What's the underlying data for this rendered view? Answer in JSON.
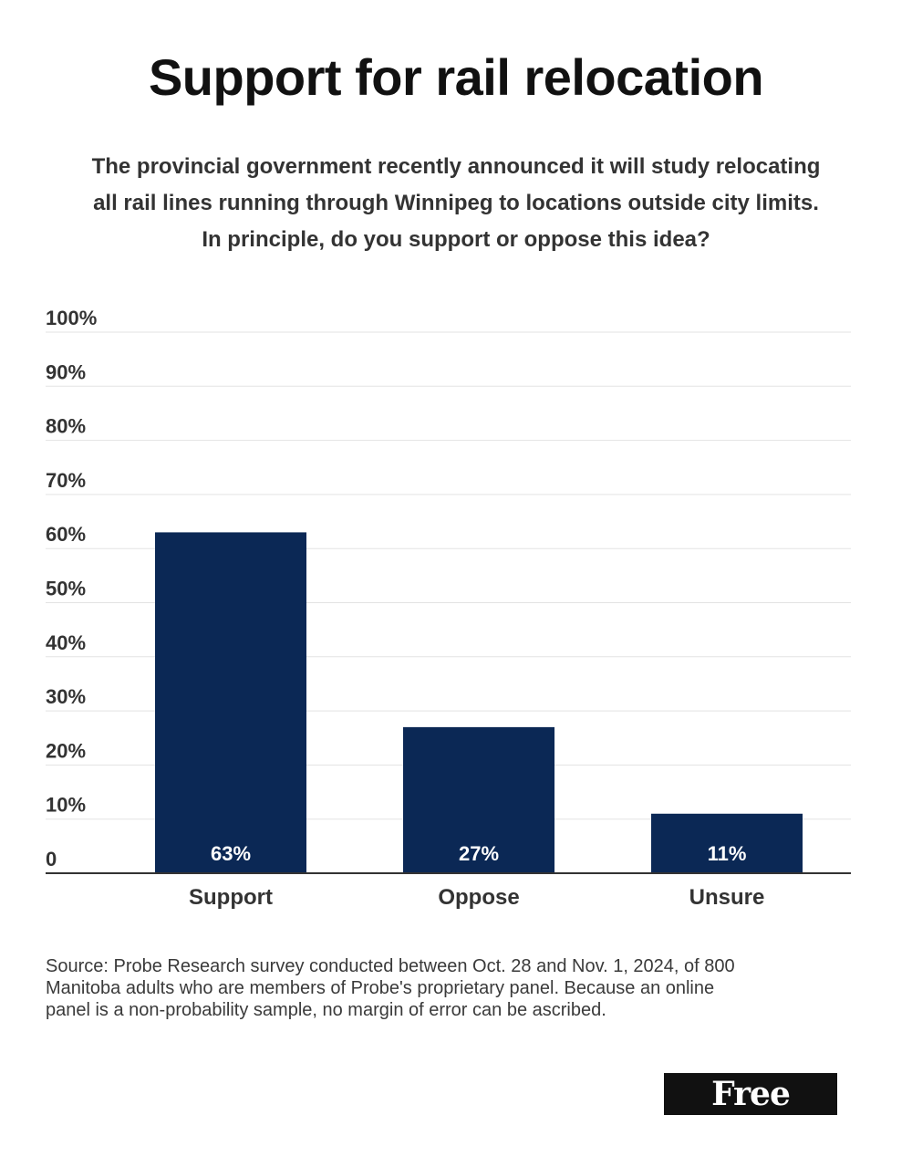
{
  "chart_data": {
    "type": "bar",
    "title": "Support for rail relocation",
    "subtitle_lines": [
      "The provincial government recently announced it will study relocating",
      "all rail lines running through Winnipeg to locations outside city limits.",
      "In principle, do you support or oppose this idea?"
    ],
    "categories": [
      "Support",
      "Oppose",
      "Unsure"
    ],
    "values": [
      63,
      27,
      11
    ],
    "data_labels": [
      "63%",
      "27%",
      "11%"
    ],
    "y_ticks": [
      0,
      10,
      20,
      30,
      40,
      50,
      60,
      70,
      80,
      90,
      100
    ],
    "y_tick_labels": [
      "0",
      "10%",
      "20%",
      "30%",
      "40%",
      "50%",
      "60%",
      "70%",
      "80%",
      "90%",
      "100%"
    ],
    "ylim": [
      0,
      100
    ],
    "xlabel": "",
    "ylabel": "",
    "grid": true,
    "bar_color": "#0b2855",
    "grid_color": "#e3e3e3",
    "axis_color": "#333333"
  },
  "source_lines": [
    "Source: Probe Research survey conducted between Oct. 28 and Nov. 1, 2024, of 800",
    "Manitoba adults who are members of Probe's proprietary panel. Because an online",
    "panel is a non-probability sample, no margin of error can be ascribed."
  ],
  "logo": {
    "text": "Free Press"
  }
}
